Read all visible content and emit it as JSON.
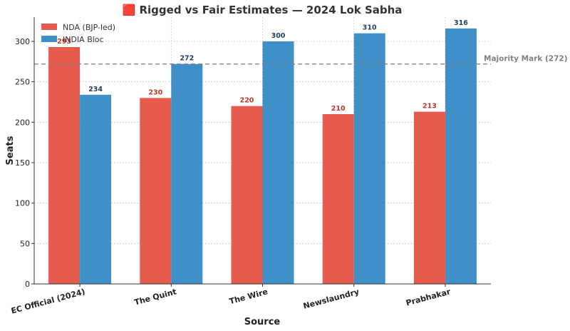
{
  "chart_data": {
    "type": "bar",
    "title": "🟥 Rigged vs Fair Estimates — 2024 Lok Sabha",
    "xlabel": "Source",
    "ylabel": "Seats",
    "categories": [
      "EC Official (2024)",
      "The Quint",
      "The Wire",
      "Newslaundry",
      "Prabhakar"
    ],
    "series": [
      {
        "name": "NDA (BJP-led)",
        "color": "#e55b4d",
        "label_color": "#c0392b",
        "values": [
          293,
          230,
          220,
          210,
          213
        ]
      },
      {
        "name": "INDIA Bloc",
        "color": "#3f8fc9",
        "label_color": "#1f3f5f",
        "values": [
          234,
          272,
          300,
          310,
          316
        ]
      }
    ],
    "ylim": [
      0,
      330
    ],
    "yticks": [
      0,
      50,
      100,
      150,
      200,
      250,
      300
    ],
    "grid": true,
    "legend": "top-left",
    "reference_line": {
      "value": 272,
      "label": "Majority Mark (272)",
      "color": "#808080"
    }
  }
}
